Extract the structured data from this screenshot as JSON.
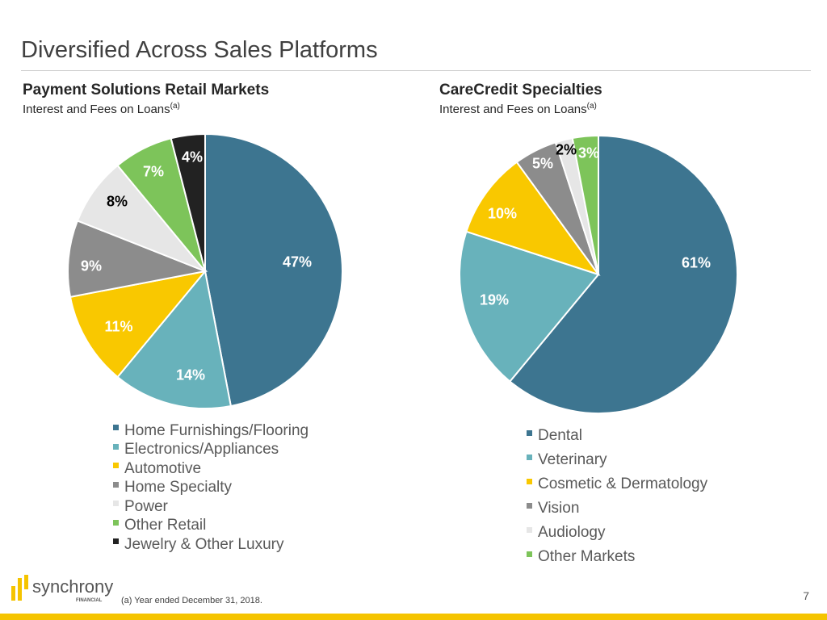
{
  "title": "Diversified Across Sales Platforms",
  "footnote": "(a) Year ended December 31, 2018.",
  "page_number": "7",
  "logo": {
    "name": "synchrony",
    "sub": "FINANCIAL"
  },
  "chart_data": [
    {
      "type": "pie",
      "title": "Payment Solutions Retail Markets",
      "subtitle": "Interest and Fees on Loans",
      "subtitle_sup": "(a)",
      "categories": [
        "Home Furnishings/Flooring",
        "Electronics/Appliances",
        "Automotive",
        "Home Specialty",
        "Power",
        "Other Retail",
        "Jewelry & Other Luxury"
      ],
      "values": [
        47,
        14,
        11,
        9,
        8,
        7,
        4
      ],
      "labels": [
        "47%",
        "14%",
        "11%",
        "9%",
        "8%",
        "7%",
        "4%"
      ],
      "colors": [
        "#3d7590",
        "#68b2bb",
        "#f9c800",
        "#8c8c8c",
        "#e6e6e6",
        "#7dc45a",
        "#222222"
      ],
      "legend": "bottom"
    },
    {
      "type": "pie",
      "title": "CareCredit Specialties",
      "subtitle": "Interest and Fees on Loans",
      "subtitle_sup": "(a)",
      "categories": [
        "Dental",
        "Veterinary",
        "Cosmetic & Dermatology",
        "Vision",
        "Audiology",
        "Other Markets"
      ],
      "values": [
        61,
        19,
        10,
        5,
        2,
        3
      ],
      "labels": [
        "61%",
        "19%",
        "10%",
        "5%",
        "2%",
        "3%"
      ],
      "colors": [
        "#3d7590",
        "#68b2bb",
        "#f9c800",
        "#8c8c8c",
        "#e6e6e6",
        "#7dc45a"
      ],
      "legend": "bottom"
    }
  ]
}
